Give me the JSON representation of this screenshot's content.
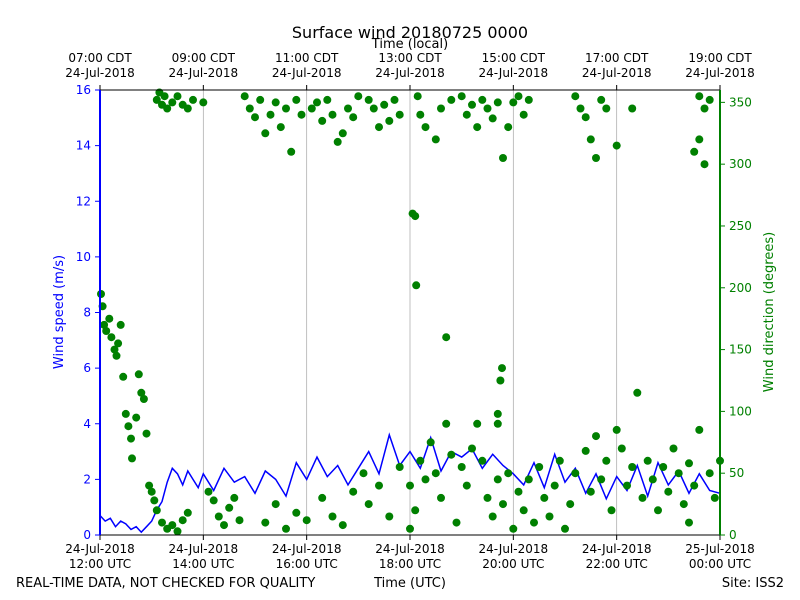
{
  "chart_data": {
    "type": "line+scatter",
    "title": "Surface wind 20180725 0000",
    "top_axis_label": "Time (local)",
    "xlabel": "Time (UTC)",
    "ylabel": "Wind speed (m/s)",
    "y2label": "Wind direction (degrees)",
    "footer_left": "REAL-TIME DATA, NOT CHECKED FOR QUALITY",
    "footer_right": "Site: ISS2",
    "xlim_hours_utc": [
      12,
      24
    ],
    "ylim": [
      0,
      16
    ],
    "y2lim": [
      0,
      360
    ],
    "grid": "vertical",
    "bottom_ticks": [
      {
        "h": 12,
        "l1": "24-Jul-2018",
        "l2": "12:00 UTC"
      },
      {
        "h": 14,
        "l1": "24-Jul-2018",
        "l2": "14:00 UTC"
      },
      {
        "h": 16,
        "l1": "24-Jul-2018",
        "l2": "16:00 UTC"
      },
      {
        "h": 18,
        "l1": "24-Jul-2018",
        "l2": "18:00 UTC"
      },
      {
        "h": 20,
        "l1": "24-Jul-2018",
        "l2": "20:00 UTC"
      },
      {
        "h": 22,
        "l1": "24-Jul-2018",
        "l2": "22:00 UTC"
      },
      {
        "h": 24,
        "l1": "25-Jul-2018",
        "l2": "00:00 UTC"
      }
    ],
    "top_ticks": [
      {
        "h": 12,
        "l1": "07:00 CDT",
        "l2": "24-Jul-2018"
      },
      {
        "h": 14,
        "l1": "09:00 CDT",
        "l2": "24-Jul-2018"
      },
      {
        "h": 16,
        "l1": "11:00 CDT",
        "l2": "24-Jul-2018"
      },
      {
        "h": 18,
        "l1": "13:00 CDT",
        "l2": "24-Jul-2018"
      },
      {
        "h": 20,
        "l1": "15:00 CDT",
        "l2": "24-Jul-2018"
      },
      {
        "h": 22,
        "l1": "17:00 CDT",
        "l2": "24-Jul-2018"
      },
      {
        "h": 24,
        "l1": "19:00 CDT",
        "l2": "24-Jul-2018"
      }
    ],
    "yticks": [
      0,
      2,
      4,
      6,
      8,
      10,
      12,
      14,
      16
    ],
    "y2ticks": [
      0,
      50,
      100,
      150,
      200,
      250,
      300,
      350
    ],
    "speed_series": {
      "name": "Wind speed (m/s)",
      "color": "#0000ff",
      "points": [
        [
          12.0,
          0.7
        ],
        [
          12.1,
          0.5
        ],
        [
          12.2,
          0.6
        ],
        [
          12.3,
          0.3
        ],
        [
          12.4,
          0.5
        ],
        [
          12.5,
          0.4
        ],
        [
          12.6,
          0.2
        ],
        [
          12.7,
          0.3
        ],
        [
          12.8,
          0.1
        ],
        [
          12.9,
          0.3
        ],
        [
          13.0,
          0.5
        ],
        [
          13.1,
          0.9
        ],
        [
          13.2,
          1.2
        ],
        [
          13.3,
          1.9
        ],
        [
          13.4,
          2.4
        ],
        [
          13.5,
          2.2
        ],
        [
          13.6,
          1.8
        ],
        [
          13.7,
          2.3
        ],
        [
          13.8,
          2.0
        ],
        [
          13.9,
          1.7
        ],
        [
          14.0,
          2.2
        ],
        [
          14.2,
          1.6
        ],
        [
          14.4,
          2.4
        ],
        [
          14.6,
          1.9
        ],
        [
          14.8,
          2.1
        ],
        [
          15.0,
          1.5
        ],
        [
          15.2,
          2.3
        ],
        [
          15.4,
          2.0
        ],
        [
          15.6,
          1.4
        ],
        [
          15.8,
          2.6
        ],
        [
          16.0,
          2.0
        ],
        [
          16.2,
          2.8
        ],
        [
          16.4,
          2.1
        ],
        [
          16.6,
          2.5
        ],
        [
          16.8,
          1.8
        ],
        [
          17.0,
          2.4
        ],
        [
          17.2,
          3.0
        ],
        [
          17.4,
          2.2
        ],
        [
          17.6,
          3.6
        ],
        [
          17.8,
          2.5
        ],
        [
          18.0,
          3.0
        ],
        [
          18.2,
          2.4
        ],
        [
          18.4,
          3.5
        ],
        [
          18.6,
          2.3
        ],
        [
          18.8,
          3.0
        ],
        [
          19.0,
          2.8
        ],
        [
          19.2,
          3.1
        ],
        [
          19.4,
          2.4
        ],
        [
          19.6,
          2.9
        ],
        [
          19.8,
          2.5
        ],
        [
          20.0,
          2.2
        ],
        [
          20.2,
          1.8
        ],
        [
          20.4,
          2.6
        ],
        [
          20.6,
          1.7
        ],
        [
          20.8,
          2.9
        ],
        [
          21.0,
          1.9
        ],
        [
          21.2,
          2.4
        ],
        [
          21.4,
          1.5
        ],
        [
          21.6,
          2.2
        ],
        [
          21.8,
          1.3
        ],
        [
          22.0,
          2.1
        ],
        [
          22.2,
          1.6
        ],
        [
          22.4,
          2.5
        ],
        [
          22.6,
          1.4
        ],
        [
          22.8,
          2.6
        ],
        [
          23.0,
          1.8
        ],
        [
          23.2,
          2.3
        ],
        [
          23.4,
          1.5
        ],
        [
          23.6,
          2.2
        ],
        [
          23.8,
          1.6
        ],
        [
          24.0,
          1.5
        ]
      ]
    },
    "direction_series": {
      "name": "Wind direction (degrees)",
      "color": "#008000",
      "points": [
        [
          12.02,
          195
        ],
        [
          12.05,
          185
        ],
        [
          12.08,
          170
        ],
        [
          12.12,
          165
        ],
        [
          12.18,
          175
        ],
        [
          12.22,
          160
        ],
        [
          12.28,
          150
        ],
        [
          12.32,
          145
        ],
        [
          12.35,
          155
        ],
        [
          12.4,
          170
        ],
        [
          12.45,
          128
        ],
        [
          12.5,
          98
        ],
        [
          12.55,
          88
        ],
        [
          12.6,
          78
        ],
        [
          12.62,
          62
        ],
        [
          12.7,
          95
        ],
        [
          12.75,
          130
        ],
        [
          12.8,
          115
        ],
        [
          12.85,
          110
        ],
        [
          12.9,
          82
        ],
        [
          12.95,
          40
        ],
        [
          13.0,
          35
        ],
        [
          13.05,
          28
        ],
        [
          13.1,
          20
        ],
        [
          13.2,
          10
        ],
        [
          13.3,
          5
        ],
        [
          13.4,
          8
        ],
        [
          13.5,
          3
        ],
        [
          13.6,
          12
        ],
        [
          13.7,
          18
        ],
        [
          13.1,
          352
        ],
        [
          13.15,
          358
        ],
        [
          13.2,
          348
        ],
        [
          13.25,
          355
        ],
        [
          13.3,
          345
        ],
        [
          13.4,
          350
        ],
        [
          13.5,
          355
        ],
        [
          13.6,
          348
        ],
        [
          13.7,
          345
        ],
        [
          13.8,
          352
        ],
        [
          14.0,
          350
        ],
        [
          14.1,
          35
        ],
        [
          14.2,
          28
        ],
        [
          14.3,
          15
        ],
        [
          14.4,
          8
        ],
        [
          14.5,
          22
        ],
        [
          14.6,
          30
        ],
        [
          14.7,
          12
        ],
        [
          14.8,
          355
        ],
        [
          14.9,
          345
        ],
        [
          15.0,
          338
        ],
        [
          15.1,
          352
        ],
        [
          15.2,
          325
        ],
        [
          15.3,
          340
        ],
        [
          15.4,
          350
        ],
        [
          15.5,
          330
        ],
        [
          15.6,
          345
        ],
        [
          15.7,
          310
        ],
        [
          15.8,
          352
        ],
        [
          15.9,
          340
        ],
        [
          15.2,
          10
        ],
        [
          15.4,
          25
        ],
        [
          15.6,
          5
        ],
        [
          15.8,
          18
        ],
        [
          16.0,
          12
        ],
        [
          16.1,
          345
        ],
        [
          16.2,
          350
        ],
        [
          16.3,
          335
        ],
        [
          16.4,
          352
        ],
        [
          16.5,
          340
        ],
        [
          16.6,
          318
        ],
        [
          16.7,
          325
        ],
        [
          16.8,
          345
        ],
        [
          16.9,
          338
        ],
        [
          17.0,
          355
        ],
        [
          16.3,
          30
        ],
        [
          16.5,
          15
        ],
        [
          16.7,
          8
        ],
        [
          16.9,
          35
        ],
        [
          17.1,
          50
        ],
        [
          17.2,
          352
        ],
        [
          17.3,
          345
        ],
        [
          17.4,
          330
        ],
        [
          17.5,
          348
        ],
        [
          17.6,
          335
        ],
        [
          17.7,
          352
        ],
        [
          17.8,
          340
        ],
        [
          17.2,
          25
        ],
        [
          17.4,
          40
        ],
        [
          17.6,
          15
        ],
        [
          17.8,
          55
        ],
        [
          18.0,
          40
        ],
        [
          18.05,
          260
        ],
        [
          18.1,
          258
        ],
        [
          18.12,
          202
        ],
        [
          18.15,
          355
        ],
        [
          18.2,
          340
        ],
        [
          18.3,
          330
        ],
        [
          18.0,
          5
        ],
        [
          18.1,
          20
        ],
        [
          18.2,
          60
        ],
        [
          18.3,
          45
        ],
        [
          18.4,
          75
        ],
        [
          18.5,
          50
        ],
        [
          18.6,
          30
        ],
        [
          18.7,
          90
        ],
        [
          18.8,
          65
        ],
        [
          18.9,
          10
        ],
        [
          18.7,
          160
        ],
        [
          18.5,
          320
        ],
        [
          18.6,
          345
        ],
        [
          18.8,
          352
        ],
        [
          19.0,
          355
        ],
        [
          19.1,
          340
        ],
        [
          19.2,
          348
        ],
        [
          19.3,
          330
        ],
        [
          19.4,
          352
        ],
        [
          19.5,
          345
        ],
        [
          19.6,
          337
        ],
        [
          19.7,
          350
        ],
        [
          19.0,
          55
        ],
        [
          19.1,
          40
        ],
        [
          19.2,
          70
        ],
        [
          19.3,
          90
        ],
        [
          19.4,
          60
        ],
        [
          19.5,
          30
        ],
        [
          19.6,
          15
        ],
        [
          19.7,
          45
        ],
        [
          19.8,
          25
        ],
        [
          19.9,
          50
        ],
        [
          20.0,
          5
        ],
        [
          19.7,
          90
        ],
        [
          19.75,
          125
        ],
        [
          19.78,
          135
        ],
        [
          19.7,
          98
        ],
        [
          19.8,
          305
        ],
        [
          19.9,
          330
        ],
        [
          20.0,
          350
        ],
        [
          20.1,
          355
        ],
        [
          20.2,
          340
        ],
        [
          20.3,
          352
        ],
        [
          20.1,
          35
        ],
        [
          20.2,
          20
        ],
        [
          20.3,
          45
        ],
        [
          20.4,
          10
        ],
        [
          20.5,
          55
        ],
        [
          20.6,
          30
        ],
        [
          20.7,
          15
        ],
        [
          20.8,
          40
        ],
        [
          20.9,
          60
        ],
        [
          21.0,
          5
        ],
        [
          21.1,
          25
        ],
        [
          21.2,
          355
        ],
        [
          21.3,
          345
        ],
        [
          21.4,
          338
        ],
        [
          21.5,
          320
        ],
        [
          21.6,
          305
        ],
        [
          21.7,
          352
        ],
        [
          21.8,
          345
        ],
        [
          21.2,
          50
        ],
        [
          21.4,
          68
        ],
        [
          21.5,
          35
        ],
        [
          21.6,
          80
        ],
        [
          21.7,
          45
        ],
        [
          21.8,
          60
        ],
        [
          21.9,
          20
        ],
        [
          22.0,
          85
        ],
        [
          22.1,
          70
        ],
        [
          22.2,
          40
        ],
        [
          22.3,
          55
        ],
        [
          22.4,
          115
        ],
        [
          22.3,
          345
        ],
        [
          22.0,
          315
        ],
        [
          22.5,
          30
        ],
        [
          22.6,
          60
        ],
        [
          22.7,
          45
        ],
        [
          22.8,
          20
        ],
        [
          22.9,
          55
        ],
        [
          23.0,
          35
        ],
        [
          23.1,
          70
        ],
        [
          23.2,
          50
        ],
        [
          23.3,
          25
        ],
        [
          23.4,
          58
        ],
        [
          23.5,
          310
        ],
        [
          23.6,
          320
        ],
        [
          23.7,
          300
        ],
        [
          23.6,
          355
        ],
        [
          23.7,
          345
        ],
        [
          23.8,
          352
        ],
        [
          23.6,
          85
        ],
        [
          23.8,
          50
        ],
        [
          23.9,
          30
        ],
        [
          24.0,
          60
        ],
        [
          23.5,
          40
        ],
        [
          23.4,
          10
        ]
      ]
    }
  }
}
